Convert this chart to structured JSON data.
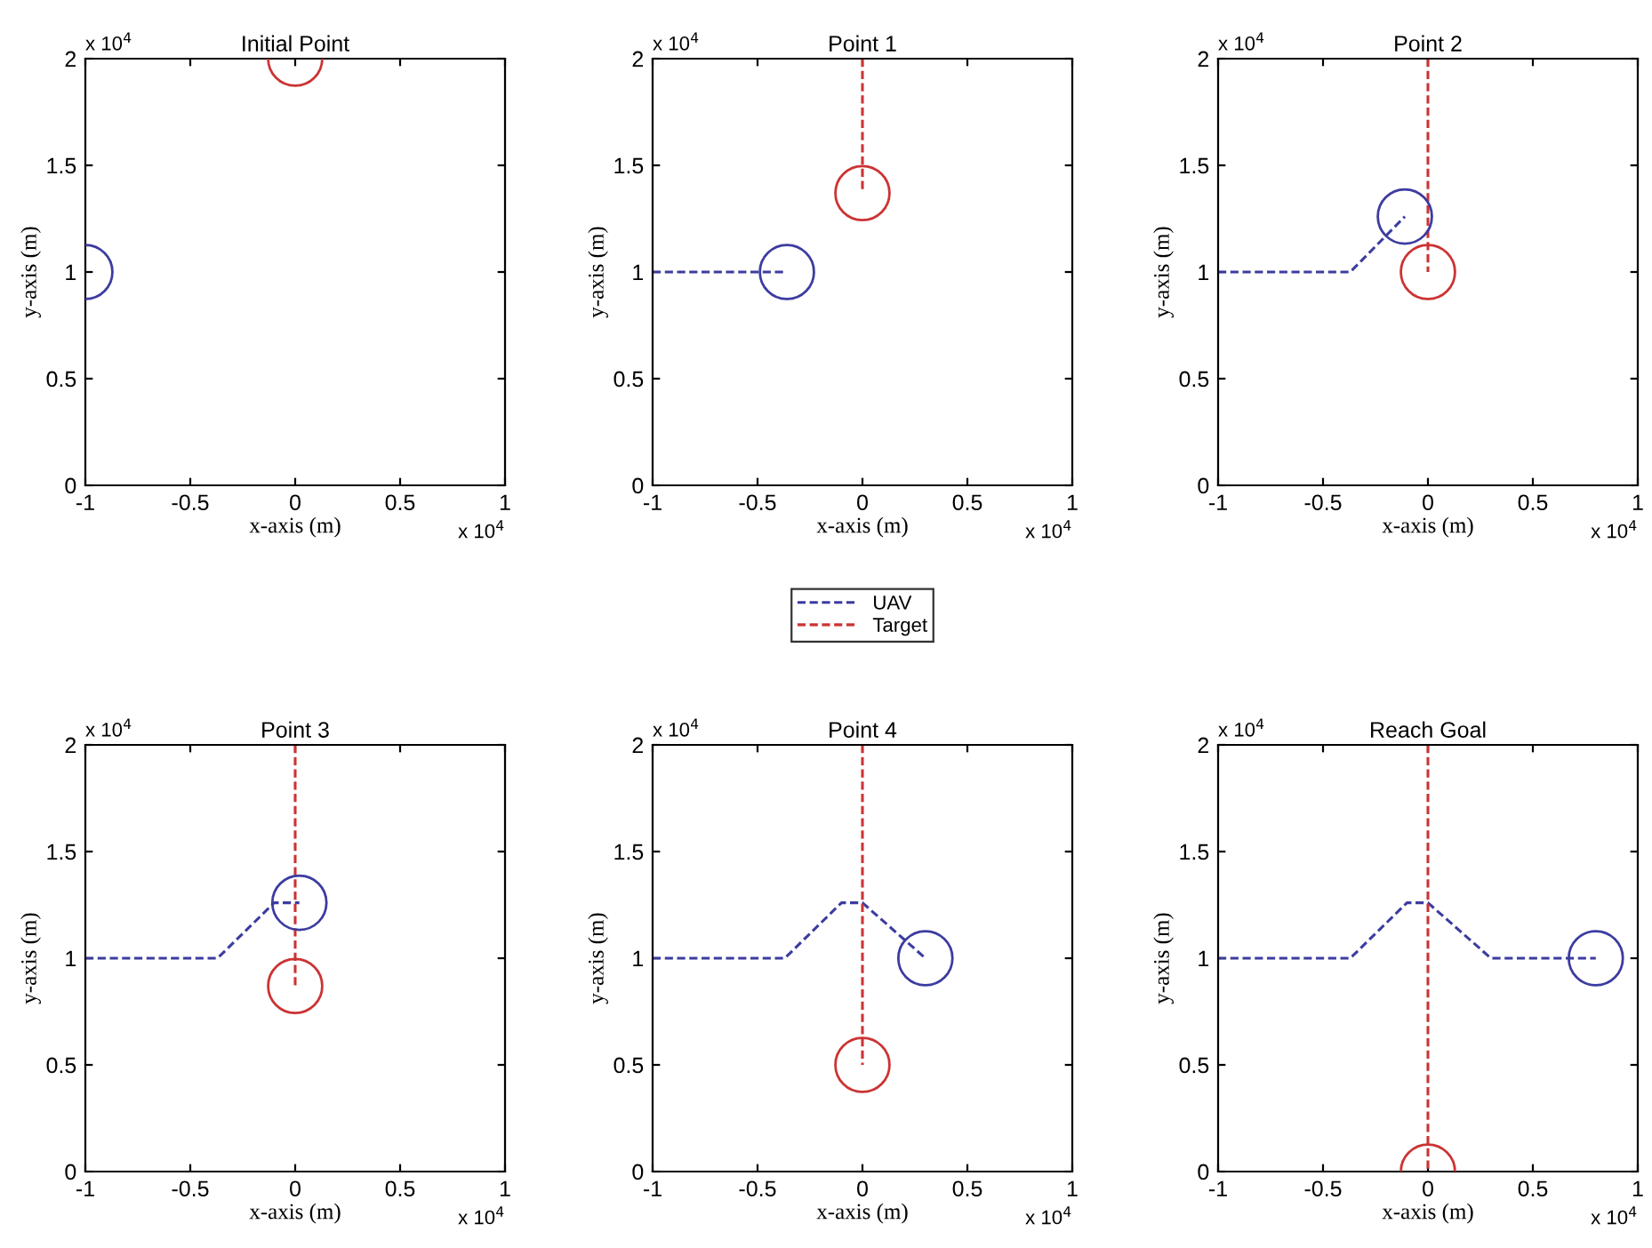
{
  "chart_data": [
    {
      "type": "line",
      "title": "Initial Point",
      "xlabel": "x-axis (m)",
      "ylabel": "y-axis (m)",
      "xlim": [
        -1,
        1
      ],
      "ylim": [
        0,
        2
      ],
      "xticks": [
        -1,
        -0.5,
        0,
        0.5,
        1
      ],
      "yticks": [
        0,
        0.5,
        1,
        1.5,
        2
      ],
      "annotations": [
        "x 10$^{4}$",
        "x 10$^{4}$"
      ],
      "grid": false,
      "series": [
        {
          "type": "scatter",
          "color": "#3c3ca0",
          "marker": "circle",
          "x": [
            -1
          ],
          "values": [
            1
          ]
        },
        {
          "type": "scatter",
          "color": "#cc3333",
          "marker": "circle",
          "x": [
            0
          ],
          "values": [
            2
          ]
        }
      ]
    },
    {
      "type": "line",
      "title": "Point 1",
      "xlabel": "x-axis (m)",
      "ylabel": "y-axis (m)",
      "xlim": [
        -1,
        1
      ],
      "ylim": [
        0,
        2
      ],
      "xticks": [
        -1,
        -0.5,
        0,
        0.5,
        1
      ],
      "yticks": [
        0,
        0.5,
        1,
        1.5,
        2
      ],
      "annotations": [
        "x 10$^{4}$",
        "x 10$^{4}$"
      ],
      "grid": false,
      "legend": "bottom",
      "series": [
        {
          "name": "UAV",
          "type": "line",
          "line_style": "dashed",
          "color": "#3c3ca0",
          "x": [
            -1,
            -0.36
          ],
          "values": [
            1,
            1
          ]
        },
        {
          "name": "Target",
          "type": "line",
          "line_style": "dashed",
          "color": "#cc3333",
          "x": [
            0,
            0
          ],
          "values": [
            2,
            1.37
          ]
        },
        {
          "type": "scatter",
          "color": "#3c3ca0",
          "marker": "circle",
          "x": [
            -0.36
          ],
          "values": [
            1
          ]
        },
        {
          "type": "scatter",
          "color": "#cc3333",
          "marker": "circle",
          "x": [
            0
          ],
          "values": [
            1.37
          ]
        }
      ]
    },
    {
      "type": "line",
      "title": "Point 2",
      "xlabel": "x-axis (m)",
      "ylabel": "y-axis (m)",
      "xlim": [
        -1,
        1
      ],
      "ylim": [
        0,
        2
      ],
      "xticks": [
        -1,
        -0.5,
        0,
        0.5,
        1
      ],
      "yticks": [
        0,
        0.5,
        1,
        1.5,
        2
      ],
      "annotations": [
        "x 10$^{4}$",
        "x 10$^{4}$"
      ],
      "grid": false,
      "series": [
        {
          "type": "line",
          "line_style": "dashed",
          "color": "#3c3ca0",
          "x": [
            -1,
            -0.37,
            -0.11
          ],
          "values": [
            1,
            1,
            1.26
          ]
        },
        {
          "type": "line",
          "line_style": "dashed",
          "color": "#cc3333",
          "x": [
            0,
            0
          ],
          "values": [
            2,
            1
          ]
        },
        {
          "type": "scatter",
          "color": "#3c3ca0",
          "marker": "circle",
          "x": [
            -0.11
          ],
          "values": [
            1.26
          ]
        },
        {
          "type": "scatter",
          "color": "#cc3333",
          "marker": "circle",
          "x": [
            0
          ],
          "values": [
            1
          ]
        }
      ]
    },
    {
      "type": "line",
      "title": "Point 3",
      "xlabel": "x-axis (m)",
      "ylabel": "y-axis (m)",
      "xlim": [
        -1,
        1
      ],
      "ylim": [
        0,
        2
      ],
      "xticks": [
        -1,
        -0.5,
        0,
        0.5,
        1
      ],
      "yticks": [
        0,
        0.5,
        1,
        1.5,
        2
      ],
      "annotations": [
        "x 10$^{4}$",
        "x 10$^{4}$"
      ],
      "grid": false,
      "series": [
        {
          "type": "line",
          "line_style": "dashed",
          "color": "#3c3ca0",
          "x": [
            -1,
            -0.37,
            -0.1,
            0.02
          ],
          "values": [
            1,
            1,
            1.26,
            1.26
          ]
        },
        {
          "type": "line",
          "line_style": "dashed",
          "color": "#cc3333",
          "x": [
            0,
            0
          ],
          "values": [
            2,
            0.87
          ]
        },
        {
          "type": "scatter",
          "color": "#3c3ca0",
          "marker": "circle",
          "x": [
            0.02
          ],
          "values": [
            1.26
          ]
        },
        {
          "type": "scatter",
          "color": "#cc3333",
          "marker": "circle",
          "x": [
            0
          ],
          "values": [
            0.87
          ]
        }
      ]
    },
    {
      "type": "line",
      "title": "Point 4",
      "xlabel": "x-axis (m)",
      "ylabel": "y-axis (m)",
      "xlim": [
        -1,
        1
      ],
      "ylim": [
        0,
        2
      ],
      "xticks": [
        -1,
        -0.5,
        0,
        0.5,
        1
      ],
      "yticks": [
        0,
        0.5,
        1,
        1.5,
        2
      ],
      "annotations": [
        "x 10$^{4}$",
        "x 10$^{4}$"
      ],
      "grid": false,
      "series": [
        {
          "type": "line",
          "line_style": "dashed",
          "color": "#3c3ca0",
          "x": [
            -1,
            -0.37,
            -0.1,
            0,
            0.3
          ],
          "values": [
            1,
            1,
            1.26,
            1.26,
            1
          ]
        },
        {
          "type": "line",
          "line_style": "dashed",
          "color": "#cc3333",
          "x": [
            0,
            0
          ],
          "values": [
            2,
            0.5
          ]
        },
        {
          "type": "scatter",
          "color": "#3c3ca0",
          "marker": "circle",
          "x": [
            0.3
          ],
          "values": [
            1
          ]
        },
        {
          "type": "scatter",
          "color": "#cc3333",
          "marker": "circle",
          "x": [
            0
          ],
          "values": [
            0.5
          ]
        }
      ]
    },
    {
      "type": "line",
      "title": "Reach Goal",
      "xlabel": "x-axis (m)",
      "ylabel": "y-axis (m)",
      "xlim": [
        -1,
        1
      ],
      "ylim": [
        0,
        2
      ],
      "xticks": [
        -1,
        -0.5,
        0,
        0.5,
        1
      ],
      "yticks": [
        0,
        0.5,
        1,
        1.5,
        2
      ],
      "annotations": [
        "x 10$^{4}$",
        "x 10$^{4}$"
      ],
      "grid": false,
      "series": [
        {
          "type": "line",
          "line_style": "dashed",
          "color": "#3c3ca0",
          "x": [
            -1,
            -0.37,
            -0.1,
            0,
            0.3,
            0.8
          ],
          "values": [
            1,
            1,
            1.26,
            1.26,
            1,
            1
          ]
        },
        {
          "type": "line",
          "line_style": "dashed",
          "color": "#cc3333",
          "x": [
            0,
            0
          ],
          "values": [
            2,
            0
          ]
        },
        {
          "type": "scatter",
          "color": "#3c3ca0",
          "marker": "circle",
          "x": [
            0.8
          ],
          "values": [
            1
          ]
        },
        {
          "type": "scatter",
          "color": "#cc3333",
          "marker": "circle",
          "x": [
            0
          ],
          "values": [
            0
          ]
        }
      ]
    }
  ]
}
